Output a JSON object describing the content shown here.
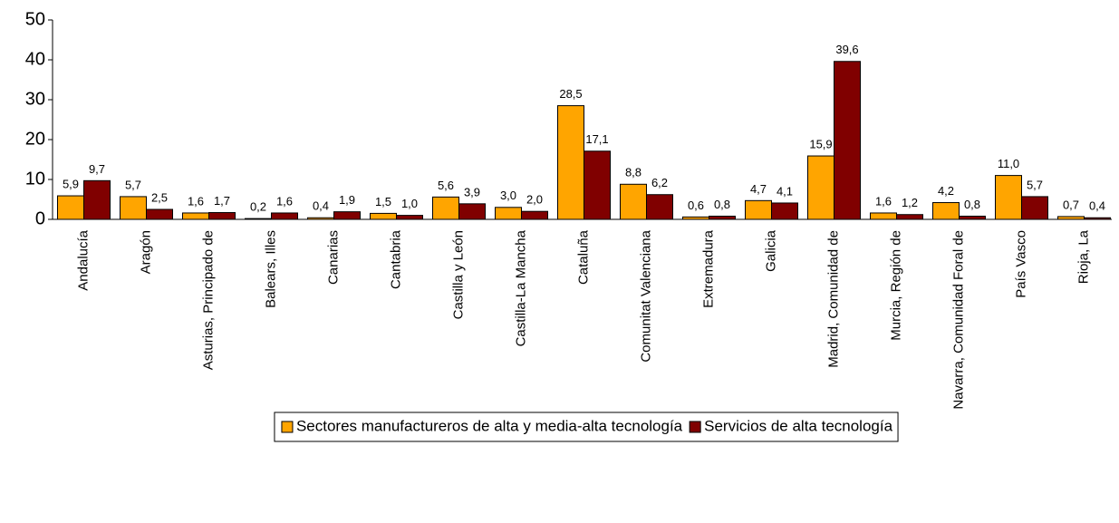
{
  "chart_data": {
    "type": "bar",
    "categories": [
      "Andalucía",
      "Aragón",
      "Asturias, Principado de",
      "Balears, Illes",
      "Canarias",
      "Cantabria",
      "Castilla y León",
      "Castilla-La Mancha",
      "Cataluña",
      "Comunitat Valenciana",
      "Extremadura",
      "Galicia",
      "Madrid, Comunidad de",
      "Murcia, Región de",
      "Navarra, Comunidad Foral de",
      "País Vasco",
      "Rioja, La"
    ],
    "series": [
      {
        "name": "Sectores manufactureros de alta y media-alta tecnología",
        "color": "#ffa500",
        "values": [
          5.9,
          5.7,
          1.6,
          0.2,
          0.4,
          1.5,
          5.6,
          3.0,
          28.5,
          8.8,
          0.6,
          4.7,
          15.9,
          1.6,
          4.2,
          11.0,
          0.7
        ],
        "value_labels": [
          "5,9",
          "5,7",
          "1,6",
          "0,2",
          "0,4",
          "1,5",
          "5,6",
          "3,0",
          "28,5",
          "8,8",
          "0,6",
          "4,7",
          "15,9",
          "1,6",
          "4,2",
          "11,0",
          "0,7"
        ]
      },
      {
        "name": "Servicios de alta tecnología",
        "color": "#800000",
        "values": [
          9.7,
          2.5,
          1.7,
          1.6,
          1.9,
          1.0,
          3.9,
          2.0,
          17.1,
          6.2,
          0.8,
          4.1,
          39.6,
          1.2,
          0.8,
          5.7,
          0.4
        ],
        "value_labels": [
          "9,7",
          "2,5",
          "1,7",
          "1,6",
          "1,9",
          "1,0",
          "3,9",
          "2,0",
          "17,1",
          "6,2",
          "0,8",
          "4,1",
          "39,6",
          "1,2",
          "0,8",
          "5,7",
          "0,4"
        ]
      }
    ],
    "ylim": [
      0,
      50
    ],
    "yticks": [
      0,
      10,
      20,
      30,
      40,
      50
    ],
    "grid": false,
    "legend": "bottom"
  }
}
